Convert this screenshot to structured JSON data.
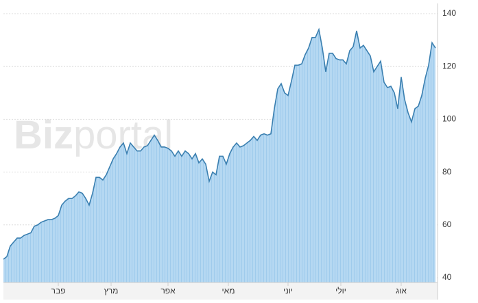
{
  "chart_data": {
    "type": "area",
    "watermark": [
      "Biz",
      "portal"
    ],
    "values": [
      47,
      48,
      52,
      53.5,
      55,
      55,
      56,
      56.5,
      57,
      59.5,
      60,
      61,
      61.5,
      62,
      62,
      62.5,
      63.5,
      67.5,
      69,
      70,
      70,
      71,
      72.5,
      72,
      70,
      67.5,
      72,
      78,
      78,
      77,
      79,
      82,
      85,
      87,
      89.5,
      91,
      87,
      91,
      89.5,
      88,
      88,
      89.5,
      90,
      92,
      94,
      92,
      89.5,
      89.5,
      89,
      88,
      86,
      88,
      86,
      88,
      87,
      85,
      87,
      83.5,
      85,
      83,
      76.5,
      80,
      79,
      86,
      86,
      83,
      87,
      89.5,
      91,
      89.5,
      90,
      91,
      92,
      93.5,
      92,
      94,
      94.5,
      94,
      94.5,
      104,
      111.5,
      113.5,
      110,
      109,
      114.5,
      120.5,
      120.5,
      121,
      124.5,
      127,
      131,
      131,
      134,
      127,
      118,
      125,
      125,
      123,
      122.5,
      122.5,
      121,
      126,
      127.5,
      133.5,
      127,
      128,
      126,
      124,
      118,
      120,
      122,
      114,
      112,
      112.5,
      110,
      104,
      116,
      107.5,
      102.5,
      99,
      104,
      105,
      109,
      115.5,
      120.5,
      129,
      127
    ],
    "xticks": [
      {
        "value": 16,
        "label": "פבר"
      },
      {
        "value": 31.4,
        "label": "מרץ"
      },
      {
        "value": 48,
        "label": "אפר"
      },
      {
        "value": 65.6,
        "label": "מאי"
      },
      {
        "value": 83,
        "label": "יוני"
      },
      {
        "value": 98.4,
        "label": "יולי"
      },
      {
        "value": 116,
        "label": "אוג"
      }
    ],
    "ylim": [
      38.2,
      140
    ],
    "yticks": [
      40,
      60,
      80,
      100,
      120,
      140
    ],
    "color": "#3a7fb0",
    "fill": "#b5d8f2",
    "grid": true
  }
}
